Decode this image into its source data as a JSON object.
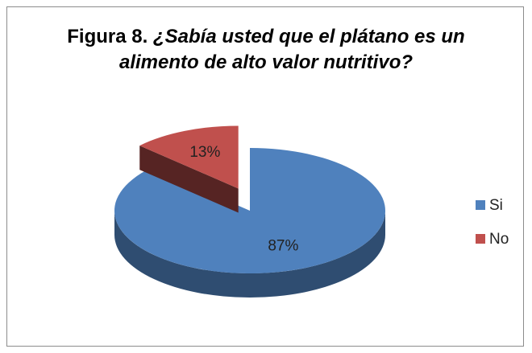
{
  "chart_data": {
    "type": "pie",
    "figure_label": "Figura 8.",
    "title": "¿Sabía usted que el plátano es un alimento de alto valor nutritivo?",
    "categories": [
      "Si",
      "No"
    ],
    "values": [
      87,
      13
    ],
    "value_labels": [
      "87%",
      "13%"
    ],
    "colors": [
      "#4f81bd",
      "#c0504d"
    ],
    "exploded": [
      false,
      true
    ],
    "legend": "right"
  }
}
